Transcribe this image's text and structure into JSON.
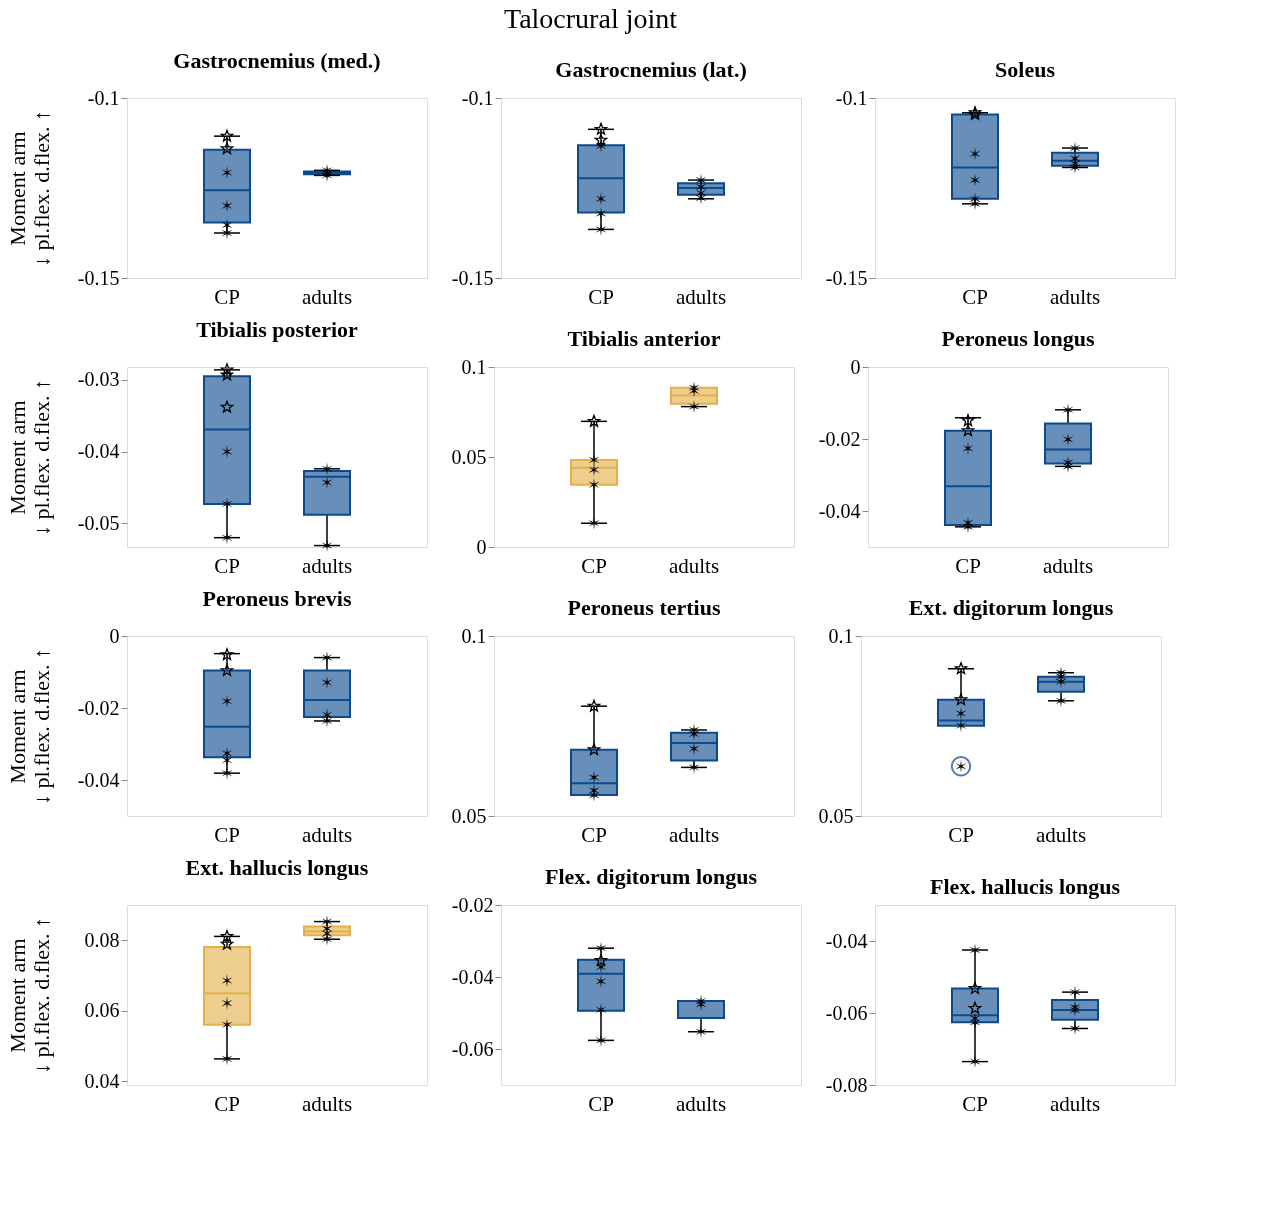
{
  "chart_data": [
    {
      "type": "other",
      "title": "Talocrural joint"
    },
    {
      "type": "box",
      "title": "Gastrocnemius (med.)",
      "ylabel": "Moment arm\n↓ pl.flex.            d.flex. ↑",
      "categories": [
        "CP",
        "adults"
      ],
      "ylim": [
        -0.15,
        -0.1
      ],
      "yticks": [
        -0.15,
        -0.1
      ],
      "grid": false,
      "colors": [
        "#0b4a8f",
        "#0b4a8f"
      ],
      "boxes": [
        {
          "low": -0.1375,
          "q1": -0.1346,
          "median": -0.1256,
          "q3": -0.1144,
          "high": -0.1106
        },
        {
          "low": -0.1215,
          "q1": -0.1212,
          "median": -0.1208,
          "q3": -0.1204,
          "high": -0.1201
        }
      ],
      "series": [
        {
          "type": "scatter",
          "marker": "star",
          "color": "#000000",
          "x": [
            "CP",
            "CP"
          ],
          "values": [
            -0.1106,
            -0.1141
          ]
        },
        {
          "type": "scatter",
          "marker": "cross",
          "color": "#000000",
          "x": [
            "CP",
            "CP",
            "CP",
            "CP",
            "adults",
            "adults",
            "adults"
          ],
          "values": [
            -0.1207,
            -0.1299,
            -0.1353,
            -0.1375,
            -0.1201,
            -0.1207,
            -0.1215
          ]
        }
      ]
    },
    {
      "type": "box",
      "title": "Gastrocnemius (lat.)",
      "categories": [
        "CP",
        "adults"
      ],
      "ylim": [
        -0.15,
        -0.1
      ],
      "yticks": [
        -0.15,
        -0.1
      ],
      "grid": false,
      "colors": [
        "#0b4a8f",
        "#0b4a8f"
      ],
      "boxes": [
        {
          "low": -0.1365,
          "q1": -0.1318,
          "median": -0.1223,
          "q3": -0.1131,
          "high": -0.1087
        },
        {
          "low": -0.128,
          "q1": -0.1269,
          "median": -0.125,
          "q3": -0.1237,
          "high": -0.1228
        }
      ],
      "series": [
        {
          "type": "scatter",
          "marker": "star",
          "color": "#000000",
          "x": [
            "CP",
            "CP"
          ],
          "values": [
            -0.1087,
            -0.1117
          ]
        },
        {
          "type": "scatter",
          "marker": "cross",
          "color": "#000000",
          "x": [
            "CP",
            "CP",
            "CP",
            "CP",
            "adults",
            "adults",
            "adults",
            "adults"
          ],
          "values": [
            -0.1133,
            -0.128,
            -0.1321,
            -0.1365,
            -0.1228,
            -0.1247,
            -0.1264,
            -0.1278
          ]
        }
      ]
    },
    {
      "type": "box",
      "title": "Soleus",
      "categories": [
        "CP",
        "adults"
      ],
      "ylim": [
        -0.15,
        -0.1
      ],
      "yticks": [
        -0.15,
        -0.1
      ],
      "grid": false,
      "colors": [
        "#0b4a8f",
        "#0b4a8f"
      ],
      "boxes": [
        {
          "low": -0.1294,
          "q1": -0.128,
          "median": -0.1193,
          "q3": -0.1046,
          "high": -0.1041
        },
        {
          "low": -0.1193,
          "q1": -0.1188,
          "median": -0.1174,
          "q3": -0.1152,
          "high": -0.1139
        }
      ],
      "series": [
        {
          "type": "scatter",
          "marker": "star",
          "color": "#000000",
          "x": [
            "CP",
            "CP"
          ],
          "values": [
            -0.1041,
            -0.1046
          ]
        },
        {
          "type": "scatter",
          "marker": "cross",
          "color": "#000000",
          "x": [
            "CP",
            "CP",
            "CP",
            "CP",
            "adults",
            "adults",
            "adults",
            "adults"
          ],
          "values": [
            -0.1155,
            -0.1228,
            -0.128,
            -0.1294,
            -0.1139,
            -0.1168,
            -0.1182,
            -0.1193
          ]
        }
      ]
    },
    {
      "type": "box",
      "title": "Tibialis posterior",
      "ylabel": "Moment arm\n↓ pl.flex.            d.flex. ↑",
      "categories": [
        "CP",
        "adults"
      ],
      "ylim": [
        -0.0533,
        -0.0282
      ],
      "yticks": [
        -0.05,
        -0.04,
        -0.03
      ],
      "grid": false,
      "colors": [
        "#0b4a8f",
        "#0b4a8f"
      ],
      "boxes": [
        {
          "low": -0.052,
          "q1": -0.0473,
          "median": -0.0369,
          "q3": -0.0295,
          "high": -0.0286
        },
        {
          "low": -0.0531,
          "q1": -0.0488,
          "median": -0.0435,
          "q3": -0.0427,
          "high": -0.0424
        }
      ],
      "series": [
        {
          "type": "scatter",
          "marker": "star",
          "color": "#000000",
          "x": [
            "CP",
            "CP",
            "CP"
          ],
          "values": [
            -0.0286,
            -0.0293,
            -0.0338
          ]
        },
        {
          "type": "scatter",
          "marker": "cross",
          "color": "#000000",
          "x": [
            "CP",
            "CP",
            "CP",
            "adults",
            "adults",
            "adults"
          ],
          "values": [
            -0.04,
            -0.0473,
            -0.052,
            -0.0424,
            -0.0443,
            -0.0531
          ]
        }
      ]
    },
    {
      "type": "box",
      "title": "Tibialis anterior",
      "categories": [
        "CP",
        "adults"
      ],
      "ylim": [
        0,
        0.1
      ],
      "yticks": [
        0,
        0.05,
        0.1
      ],
      "grid": false,
      "colors": [
        "#e3b04b",
        "#e3b04b"
      ],
      "boxes": [
        {
          "low": 0.0132,
          "q1": 0.0346,
          "median": 0.044,
          "q3": 0.0484,
          "high": 0.0698
        },
        {
          "low": 0.078,
          "q1": 0.0796,
          "median": 0.0841,
          "q3": 0.0885,
          "high": 0.0885
        }
      ],
      "series": [
        {
          "type": "scatter",
          "marker": "star",
          "color": "#000000",
          "x": [
            "CP"
          ],
          "values": [
            0.0698
          ]
        },
        {
          "type": "scatter",
          "marker": "cross",
          "color": "#000000",
          "x": [
            "CP",
            "CP",
            "CP",
            "CP",
            "adults",
            "adults",
            "adults"
          ],
          "values": [
            0.0484,
            0.0429,
            0.0346,
            0.0132,
            0.0885,
            0.0868,
            0.078
          ]
        }
      ]
    },
    {
      "type": "box",
      "title": "Peroneus longus",
      "categories": [
        "CP",
        "adults"
      ],
      "ylim": [
        -0.05,
        0
      ],
      "yticks": [
        -0.04,
        -0.02,
        0
      ],
      "grid": false,
      "colors": [
        "#0b4a8f",
        "#0b4a8f"
      ],
      "boxes": [
        {
          "low": -0.0444,
          "q1": -0.0439,
          "median": -0.0331,
          "q3": -0.0177,
          "high": -0.0141
        },
        {
          "low": -0.0276,
          "q1": -0.0268,
          "median": -0.0229,
          "q3": -0.0157,
          "high": -0.0119
        }
      ],
      "series": [
        {
          "type": "scatter",
          "marker": "star",
          "color": "#000000",
          "x": [
            "CP",
            "CP"
          ],
          "values": [
            -0.0149,
            -0.0177
          ]
        },
        {
          "type": "scatter",
          "marker": "cross",
          "color": "#000000",
          "x": [
            "CP",
            "CP",
            "CP",
            "adults",
            "adults",
            "adults",
            "adults"
          ],
          "values": [
            -0.0226,
            -0.0433,
            -0.0444,
            -0.0119,
            -0.0201,
            -0.0265,
            -0.0276
          ]
        }
      ]
    },
    {
      "type": "box",
      "title": "Peroneus brevis",
      "ylabel": "Moment arm\n↓ pl.flex.            d.flex. ↑",
      "categories": [
        "CP",
        "adults"
      ],
      "ylim": [
        -0.05,
        0
      ],
      "yticks": [
        -0.04,
        -0.02,
        0
      ],
      "grid": false,
      "colors": [
        "#0b4a8f",
        "#0b4a8f"
      ],
      "boxes": [
        {
          "low": -0.0381,
          "q1": -0.0337,
          "median": -0.0252,
          "q3": -0.0096,
          "high": -0.0049
        },
        {
          "low": -0.0236,
          "q1": -0.0225,
          "median": -0.0178,
          "q3": -0.0096,
          "high": -0.006
        }
      ],
      "series": [
        {
          "type": "scatter",
          "marker": "star",
          "color": "#000000",
          "x": [
            "CP",
            "CP"
          ],
          "values": [
            -0.0052,
            -0.0096
          ]
        },
        {
          "type": "scatter",
          "marker": "cross",
          "color": "#000000",
          "x": [
            "CP",
            "CP",
            "CP",
            "CP",
            "adults",
            "adults",
            "adults",
            "adults"
          ],
          "values": [
            -0.0181,
            -0.0326,
            -0.0345,
            -0.0381,
            -0.006,
            -0.0129,
            -0.0219,
            -0.0236
          ]
        }
      ]
    },
    {
      "type": "box",
      "title": "Peroneus tertius",
      "categories": [
        "CP",
        "adults"
      ],
      "ylim": [
        0.05,
        0.1
      ],
      "yticks": [
        0.05,
        0.1
      ],
      "grid": false,
      "colors": [
        "#0b4a8f",
        "#0b4a8f"
      ],
      "boxes": [
        {
          "low": 0.0558,
          "q1": 0.0558,
          "median": 0.0591,
          "q3": 0.0684,
          "high": 0.0805
        },
        {
          "low": 0.0635,
          "q1": 0.0654,
          "median": 0.0703,
          "q3": 0.0731,
          "high": 0.0739
        }
      ],
      "series": [
        {
          "type": "scatter",
          "marker": "star",
          "color": "#000000",
          "x": [
            "CP",
            "CP"
          ],
          "values": [
            0.0805,
            0.0684
          ]
        },
        {
          "type": "scatter",
          "marker": "cross",
          "color": "#000000",
          "x": [
            "CP",
            "CP",
            "CP",
            "adults",
            "adults",
            "adults",
            "adults"
          ],
          "values": [
            0.0607,
            0.0571,
            0.0558,
            0.0739,
            0.0728,
            0.0687,
            0.0635
          ]
        }
      ]
    },
    {
      "type": "box",
      "title": "Ext. digitorum longus",
      "categories": [
        "CP",
        "adults"
      ],
      "ylim": [
        0.05,
        0.1
      ],
      "yticks": [
        0.05,
        0.1
      ],
      "grid": false,
      "colors": [
        "#0b4a8f",
        "#0b4a8f"
      ],
      "boxes": [
        {
          "low": 0.0751,
          "q1": 0.0751,
          "median": 0.0765,
          "q3": 0.0823,
          "high": 0.0909,
          "outliers": [
            0.0638
          ]
        },
        {
          "low": 0.082,
          "q1": 0.0845,
          "median": 0.0873,
          "q3": 0.0887,
          "high": 0.0898
        }
      ],
      "series": [
        {
          "type": "scatter",
          "marker": "star",
          "color": "#000000",
          "x": [
            "CP",
            "CP"
          ],
          "values": [
            0.0909,
            0.0823
          ]
        },
        {
          "type": "scatter",
          "marker": "cross",
          "color": "#000000",
          "x": [
            "CP",
            "CP",
            "adults",
            "adults",
            "adults",
            "adults"
          ],
          "values": [
            0.0785,
            0.0751,
            0.0898,
            0.0887,
            0.0873,
            0.082
          ]
        }
      ]
    },
    {
      "type": "box",
      "title": "Ext. hallucis longus",
      "ylabel": "Moment arm\n↓ pl.flex.            d.flex. ↑",
      "categories": [
        "CP",
        "adults"
      ],
      "ylim": [
        0.039,
        0.09
      ],
      "yticks": [
        0.04,
        0.06,
        0.08
      ],
      "grid": false,
      "colors": [
        "#e3b04b",
        "#e3b04b"
      ],
      "boxes": [
        {
          "low": 0.0464,
          "q1": 0.0561,
          "median": 0.065,
          "q3": 0.0781,
          "high": 0.0811
        },
        {
          "low": 0.0803,
          "q1": 0.0814,
          "median": 0.0825,
          "q3": 0.0839,
          "high": 0.0853
        }
      ],
      "series": [
        {
          "type": "scatter",
          "marker": "star",
          "color": "#000000",
          "x": [
            "CP",
            "CP"
          ],
          "values": [
            0.0811,
            0.0789
          ]
        },
        {
          "type": "scatter",
          "marker": "cross",
          "color": "#000000",
          "x": [
            "CP",
            "CP",
            "CP",
            "CP",
            "adults",
            "adults",
            "adults",
            "adults"
          ],
          "values": [
            0.0686,
            0.0622,
            0.0561,
            0.0464,
            0.0853,
            0.0833,
            0.0819,
            0.0803
          ]
        }
      ]
    },
    {
      "type": "box",
      "title": "Flex. digitorum longus",
      "categories": [
        "CP",
        "adults"
      ],
      "ylim": [
        -0.07,
        -0.02
      ],
      "yticks": [
        -0.06,
        -0.04,
        -0.02
      ],
      "grid": false,
      "colors": [
        "#0b4a8f",
        "#0b4a8f"
      ],
      "boxes": [
        {
          "low": -0.0576,
          "q1": -0.0494,
          "median": -0.0391,
          "q3": -0.0352,
          "high": -0.032
        },
        {
          "low": -0.0552,
          "q1": -0.0514,
          "median": -0.0467,
          "q3": -0.0467,
          "high": -0.0467
        }
      ],
      "series": [
        {
          "type": "scatter",
          "marker": "star",
          "color": "#000000",
          "x": [
            "CP"
          ],
          "values": [
            -0.0354
          ]
        },
        {
          "type": "scatter",
          "marker": "cross",
          "color": "#000000",
          "x": [
            "CP",
            "CP",
            "CP",
            "CP",
            "CP",
            "adults",
            "adults",
            "adults"
          ],
          "values": [
            -0.032,
            -0.0372,
            -0.0412,
            -0.0491,
            -0.0576,
            -0.0467,
            -0.0476,
            -0.0552
          ]
        }
      ]
    },
    {
      "type": "box",
      "title": "Flex. hallucis longus",
      "categories": [
        "CP",
        "adults"
      ],
      "ylim": [
        -0.08,
        -0.03
      ],
      "yticks": [
        -0.08,
        -0.06,
        -0.04
      ],
      "grid": false,
      "colors": [
        "#0b4a8f",
        "#0b4a8f"
      ],
      "boxes": [
        {
          "low": -0.0735,
          "q1": -0.0626,
          "median": -0.0606,
          "q3": -0.0532,
          "high": -0.0425
        },
        {
          "low": -0.0643,
          "q1": -0.0619,
          "median": -0.0592,
          "q3": -0.0564,
          "high": -0.0542
        }
      ],
      "series": [
        {
          "type": "scatter",
          "marker": "star",
          "color": "#000000",
          "x": [
            "CP",
            "CP"
          ],
          "values": [
            -0.0532,
            -0.0587
          ]
        },
        {
          "type": "scatter",
          "marker": "cross",
          "color": "#000000",
          "x": [
            "CP",
            "CP",
            "CP",
            "CP",
            "adults",
            "adults",
            "adults",
            "adults"
          ],
          "values": [
            -0.0425,
            -0.0615,
            -0.0626,
            -0.0735,
            -0.0542,
            -0.0584,
            -0.0592,
            -0.0643
          ]
        }
      ]
    }
  ]
}
